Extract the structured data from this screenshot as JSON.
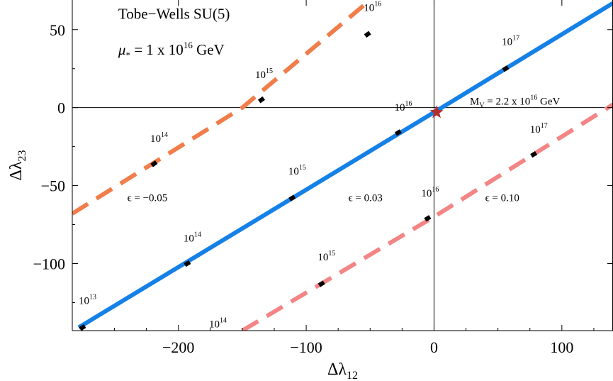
{
  "chart_data": {
    "type": "line",
    "xlabel": "Δλ",
    "xlabel_sub": "12",
    "ylabel": "Δλ",
    "ylabel_sub": "23",
    "xlim": [
      -283,
      140
    ],
    "ylim": [
      -143,
      69
    ],
    "grid": false,
    "x_ticks": [
      -200,
      -100,
      0,
      100
    ],
    "y_ticks": [
      50,
      0,
      -50,
      -100
    ],
    "x_tick_labels": [
      "−200",
      "−100",
      "0",
      "100"
    ],
    "y_tick_labels": [
      "50",
      "0",
      "−50",
      "−100"
    ],
    "annotations": {
      "model_base": "Tobe−Wells SU(5)",
      "mu_base": "μ",
      "mu_sub": "*",
      "mu_rest": " = 1 x 10",
      "mu_exp": "16",
      "mu_unit": " GeV",
      "mv_base": "M",
      "mv_sub": "V",
      "mv_rest": " = 2.2 x 10",
      "mv_exp": "16",
      "mv_unit": " GeV"
    },
    "series": [
      {
        "name": "ϵ = −0.05",
        "color": "#f07d4a",
        "style": "dashed",
        "x": [
          -283,
          -150
        ],
        "y": [
          -68,
          0
        ],
        "end": [
          -50,
          69
        ],
        "label_pos": [
          -240,
          -60
        ],
        "scale_marks": [
          {
            "x": -219,
            "y": -36,
            "exp": "14",
            "lx": -222,
            "ly": -22
          },
          {
            "x": -135,
            "y": 5,
            "exp": "15",
            "lx": -140,
            "ly": 19
          },
          {
            "x": -52,
            "y": 47,
            "exp": "16",
            "lx": -55,
            "ly": 62
          }
        ]
      },
      {
        "name": "ϵ = 0.03",
        "color": "#1581e6",
        "style": "solid",
        "x": [
          -278,
          0
        ],
        "y": [
          -141,
          -3
        ],
        "end": [
          140,
          67
        ],
        "label_pos": [
          -67,
          -60
        ],
        "scale_marks": [
          {
            "x": -275,
            "y": -141,
            "exp": "13",
            "lx": -278,
            "ly": -126
          },
          {
            "x": -193,
            "y": -100,
            "exp": "14",
            "lx": -196,
            "ly": -86
          },
          {
            "x": -111,
            "y": -58,
            "exp": "15",
            "lx": -114,
            "ly": -43
          },
          {
            "x": -28,
            "y": -16,
            "exp": "16",
            "lx": -31,
            "ly": -2
          },
          {
            "x": 56,
            "y": 25,
            "exp": "17",
            "lx": 53,
            "ly": 40
          }
        ]
      },
      {
        "name": "ϵ = 0.10",
        "color": "#f38585",
        "style": "dashed",
        "x": [
          -150,
          0
        ],
        "y": [
          -143,
          -70
        ],
        "end": [
          140,
          2
        ],
        "label_pos": [
          40,
          -60
        ],
        "scale_marks": [
          {
            "x": -172,
            "y": -147,
            "exp": "14",
            "lx": -176,
            "ly": -141
          },
          {
            "x": -88,
            "y": -113,
            "exp": "15",
            "lx": -91,
            "ly": -98
          },
          {
            "x": -5,
            "y": -71,
            "exp": "16",
            "lx": -10,
            "ly": -57
          },
          {
            "x": 78,
            "y": -30,
            "exp": "17",
            "lx": 75,
            "ly": -16
          }
        ]
      }
    ],
    "star": {
      "x": 2,
      "y": -3,
      "color": "#b03030"
    },
    "ann_positions": {
      "model": [
        -247,
        57
      ],
      "mu": [
        -247,
        34
      ],
      "mv": [
        28,
        2
      ]
    }
  }
}
